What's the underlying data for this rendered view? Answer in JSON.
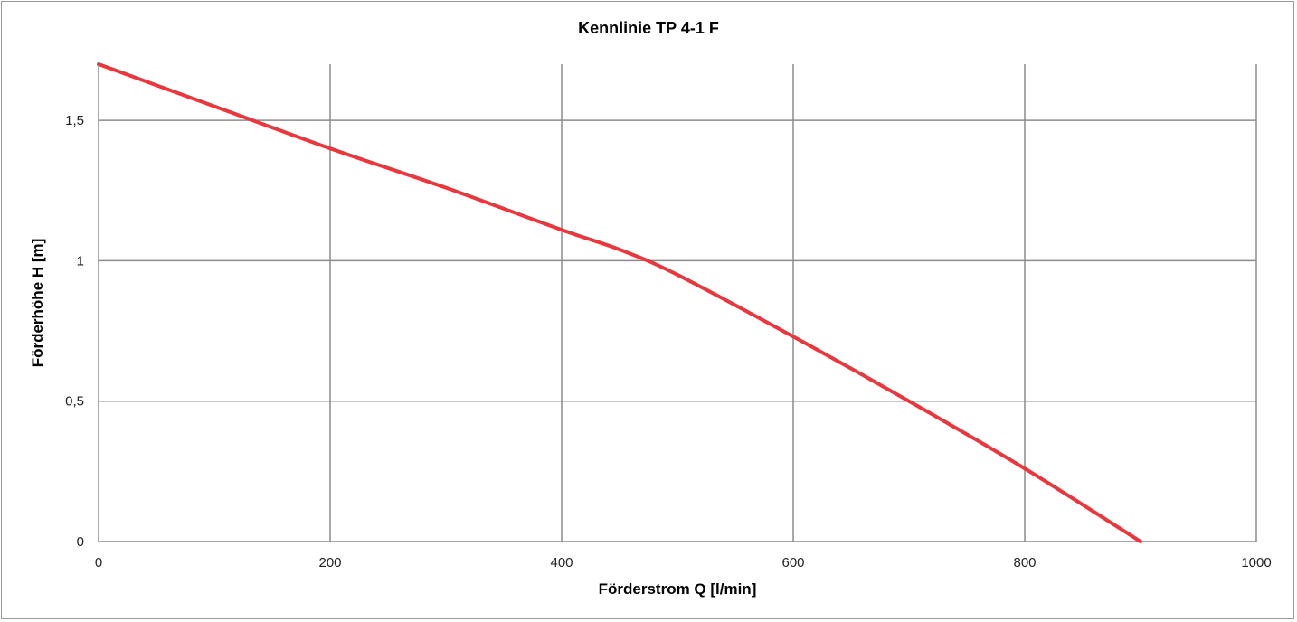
{
  "chart_data": {
    "type": "line",
    "title": "Kennlinie TP 4-1 F",
    "xlabel": "Förderstrom Q [l/min]",
    "ylabel": "Förderhöhe H [m]",
    "xlim": [
      0,
      1000
    ],
    "ylim": [
      0,
      1.7
    ],
    "x_ticks": [
      0,
      200,
      400,
      600,
      800,
      1000
    ],
    "x_tick_labels": [
      "0",
      "200",
      "400",
      "600",
      "800",
      "1000"
    ],
    "y_ticks": [
      0,
      0.5,
      1,
      1.5
    ],
    "y_tick_labels": [
      "0",
      "0,5",
      "1",
      "1,5"
    ],
    "grid": true,
    "legend": "none",
    "series": [
      {
        "color": "#e8383d",
        "x": [
          0,
          100,
          200,
          300,
          400,
          450,
          500,
          600,
          700,
          800,
          900
        ],
        "y": [
          1.7,
          1.55,
          1.4,
          1.26,
          1.11,
          1.04,
          0.95,
          0.73,
          0.5,
          0.26,
          0
        ]
      }
    ]
  }
}
